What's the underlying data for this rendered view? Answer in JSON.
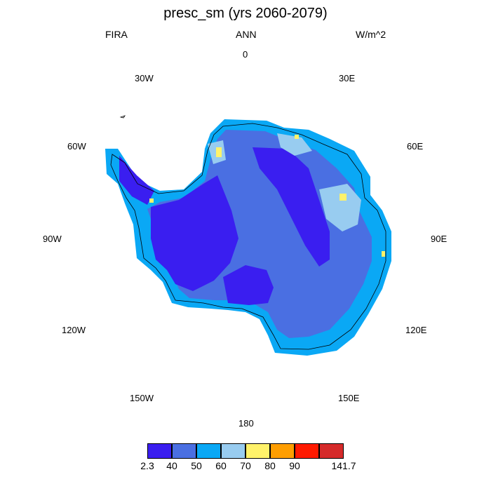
{
  "title": "presc_sm (yrs 2060-2079)",
  "left_label": "FIRA",
  "center_label": "ANN",
  "right_label": "W/m^2",
  "longitude_labels": {
    "n0": "0",
    "e30": "30E",
    "w30": "30W",
    "e60": "60E",
    "w60": "60W",
    "e90": "90E",
    "w90": "90W",
    "e120": "120E",
    "w120": "120W",
    "e150": "150E",
    "w150": "150W",
    "s180": "180"
  },
  "colorbar": {
    "colors": [
      "#3a1ef0",
      "#4a6fe2",
      "#0aa8f5",
      "#98ccf0",
      "#fff26a",
      "#ff9e00",
      "#ff1a00",
      "#d52a2a"
    ],
    "labels": [
      "2.3",
      "40",
      "50",
      "60",
      "70",
      "80",
      "90",
      "141.7"
    ]
  }
}
